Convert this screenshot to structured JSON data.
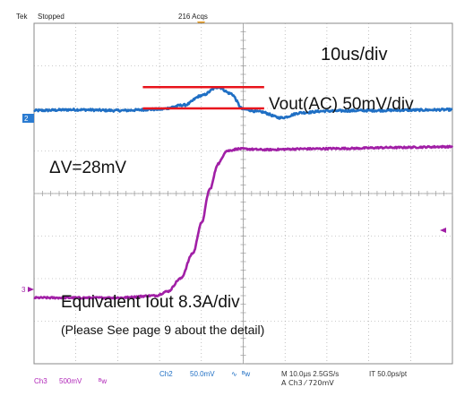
{
  "status": {
    "brand": "Tek",
    "state": "Stopped",
    "acqs": "216 Acqs"
  },
  "annotations": {
    "timebase": "10us/div",
    "vout_scale": "Vout(AC) 50mV/div",
    "delta_v": "ΔV=28mV",
    "iout_scale": "Equivalent Iout 8.3A/div",
    "note": "(Please See page 9 about the detail)"
  },
  "markers": {
    "ch2": "2",
    "ch3": "3"
  },
  "readout": {
    "ch3_label": "Ch3",
    "ch3_scale": "500mV",
    "ch3_bw": "ᴮw",
    "ch2_label": "Ch2",
    "ch2_scale": "50.0mV",
    "ch2_coupling": "∿",
    "ch2_bw": "ᴮw",
    "horizontal": "M 10.0µs 2.5GS/s",
    "interp": "IT 50.0ps/pt",
    "trigger": "A  Ch3  ⁄  720mV"
  },
  "colors": {
    "ch2_trace": "#1f6fc4",
    "ch3_trace": "#a11fa6",
    "marker_lines": "#e8141c",
    "grid": "#9a9a9a",
    "ch2_marker_bg": "#2a7bd1",
    "readout_text": "#b026b8"
  },
  "chart_data": {
    "type": "line",
    "x_divisions": 10,
    "y_divisions": 8,
    "xlim": [
      0,
      10
    ],
    "ylim": [
      0,
      8
    ],
    "series": [
      {
        "name": "Vout(AC)",
        "x": [
          0,
          1,
          2,
          3,
          3.6,
          4.0,
          4.4,
          4.7,
          5.0,
          5.4,
          5.9,
          6.4,
          7,
          8,
          9,
          10
        ],
        "y": [
          5.95,
          5.97,
          5.95,
          5.98,
          6.08,
          6.3,
          6.5,
          6.35,
          5.98,
          5.92,
          5.78,
          5.9,
          5.94,
          5.95,
          5.96,
          5.97
        ]
      },
      {
        "name": "Equivalent Iout",
        "x": [
          0,
          1,
          2,
          2.9,
          3.2,
          3.5,
          3.8,
          4.0,
          4.2,
          4.4,
          4.6,
          4.9,
          5.5,
          6.5,
          7.5,
          8.5,
          10
        ],
        "y": [
          1.55,
          1.55,
          1.55,
          1.6,
          1.7,
          2.0,
          2.6,
          3.3,
          4.1,
          4.7,
          5.0,
          5.05,
          5.03,
          5.05,
          5.06,
          5.08,
          5.1
        ]
      }
    ],
    "reference_lines": [
      {
        "y": 6.5,
        "x": [
          2.6,
          5.5
        ]
      },
      {
        "y": 6.0,
        "x": [
          2.6,
          5.5
        ]
      }
    ]
  }
}
